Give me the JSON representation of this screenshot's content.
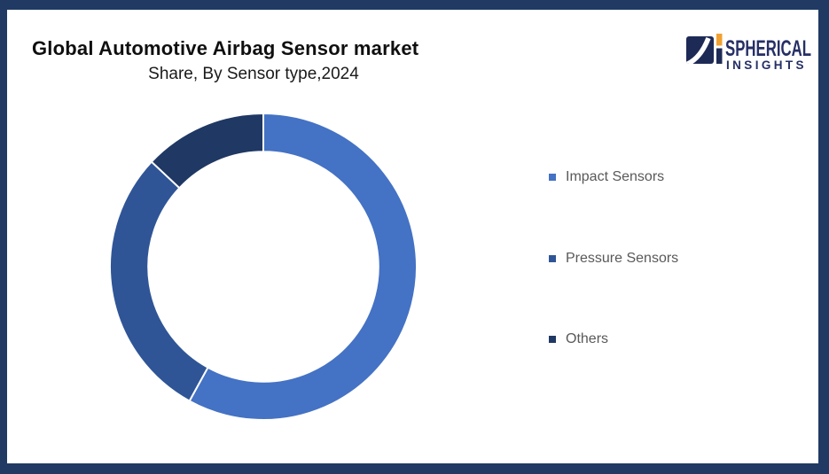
{
  "frame": {
    "border_color": "#203A63",
    "background": "#FFFFFF"
  },
  "header": {
    "title": "Global Automotive Airbag Sensor market",
    "subtitle": "Share, By Sensor type,2024"
  },
  "logo": {
    "line1": "SPHERICAL",
    "line2": "INSIGHTS",
    "navy": "#1E2A56",
    "text_navy": "#262F66",
    "orange": "#F0A132",
    "white": "#FFFFFF"
  },
  "chart_data": {
    "type": "pie",
    "donut": true,
    "title": "Global Automotive Airbag Sensor market Share, By Sensor type, 2024",
    "categories": [
      "Impact Sensors",
      "Pressure Sensors",
      "Others"
    ],
    "values": [
      58,
      29,
      13
    ],
    "unit": "percent",
    "colors": [
      "#4472C4",
      "#2F5597",
      "#1F3864"
    ],
    "start_angle_deg": 0,
    "direction": "clockwise",
    "inner_radius_ratio": 0.75,
    "separator_color": "#FFFFFF",
    "legend_position": "right",
    "data_labels": false
  },
  "legend": {
    "items": [
      {
        "label": "Impact Sensors",
        "color": "#4472C4"
      },
      {
        "label": "Pressure Sensors",
        "color": "#2F5597"
      },
      {
        "label": "Others",
        "color": "#1F3864"
      }
    ]
  }
}
